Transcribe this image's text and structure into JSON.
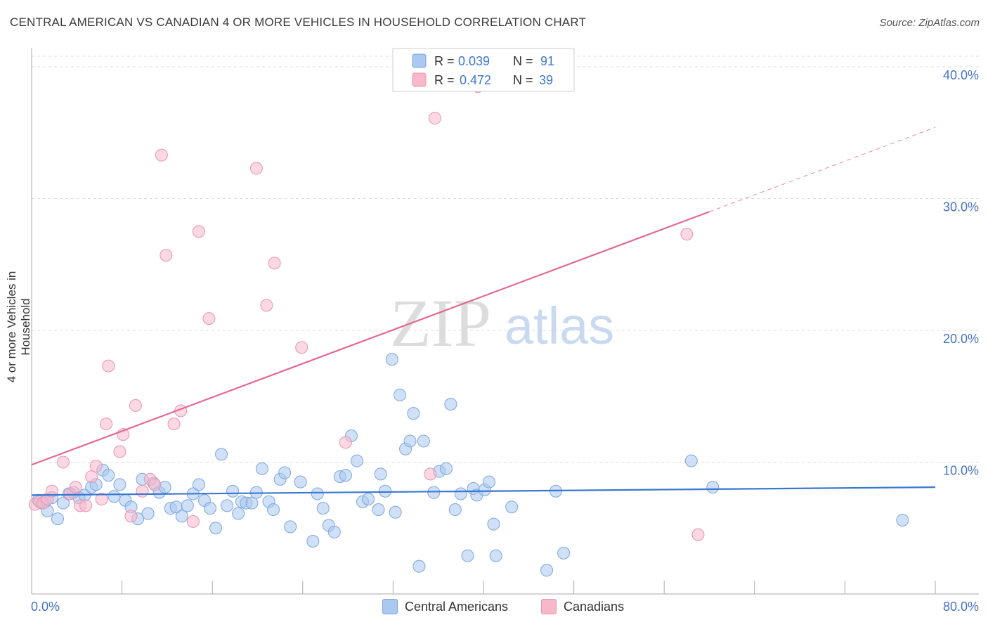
{
  "title": "CENTRAL AMERICAN VS CANADIAN 4 OR MORE VEHICLES IN HOUSEHOLD CORRELATION CHART",
  "source": "Source: ZipAtlas.com",
  "watermark": {
    "zip": "ZIP",
    "atlas": "atlas"
  },
  "legend": {
    "r_label": "R =",
    "n_label": "N =",
    "rows": [
      {
        "r": "0.039",
        "n": "91",
        "color": "#aac8f0"
      },
      {
        "r": "0.472",
        "n": "39",
        "color": "#f7b8cc"
      }
    ]
  },
  "bottom_legend": [
    {
      "label": "Central Americans",
      "color": "#aac8f0"
    },
    {
      "label": "Canadians",
      "color": "#f7b8cc"
    }
  ],
  "chart_data": {
    "type": "scatter",
    "title": "CENTRAL AMERICAN VS CANADIAN 4 OR MORE VEHICLES IN HOUSEHOLD CORRELATION CHART",
    "xlabel": "",
    "ylabel": "4 or more Vehicles in Household",
    "xlim": [
      0,
      80
    ],
    "ylim": [
      0,
      40.8
    ],
    "x_tick_labels": [
      "0.0%",
      "80.0%"
    ],
    "y_ticks": [
      10,
      20,
      30,
      40
    ],
    "y_tick_labels": [
      "10.0%",
      "20.0%",
      "30.0%",
      "40.0%"
    ],
    "grid": true,
    "series": [
      {
        "name": "Central Americans",
        "color": "#aac8f0",
        "stroke": "#7ba6de",
        "trend": {
          "x": [
            0,
            80
          ],
          "y": [
            7.5,
            8.1
          ],
          "color": "#3a78d0"
        },
        "points": [
          [
            0.6,
            7.1
          ],
          [
            0.9,
            6.9
          ],
          [
            1.2,
            7.0
          ],
          [
            1.4,
            6.3
          ],
          [
            1.8,
            7.3
          ],
          [
            2.3,
            5.7
          ],
          [
            2.8,
            6.9
          ],
          [
            3.3,
            7.6
          ],
          [
            3.7,
            7.7
          ],
          [
            4.2,
            7.3
          ],
          [
            4.7,
            7.5
          ],
          [
            5.3,
            8.1
          ],
          [
            5.7,
            8.3
          ],
          [
            6.3,
            9.4
          ],
          [
            6.8,
            9.0
          ],
          [
            7.3,
            7.4
          ],
          [
            7.8,
            8.3
          ],
          [
            8.3,
            7.1
          ],
          [
            8.8,
            6.6
          ],
          [
            9.4,
            5.7
          ],
          [
            9.8,
            8.7
          ],
          [
            10.3,
            6.1
          ],
          [
            10.8,
            8.4
          ],
          [
            11.3,
            7.7
          ],
          [
            11.8,
            8.1
          ],
          [
            12.3,
            6.5
          ],
          [
            12.8,
            6.6
          ],
          [
            13.3,
            5.9
          ],
          [
            13.8,
            6.7
          ],
          [
            14.3,
            7.6
          ],
          [
            14.8,
            8.3
          ],
          [
            15.3,
            7.1
          ],
          [
            15.8,
            6.5
          ],
          [
            16.3,
            5.0
          ],
          [
            16.8,
            10.6
          ],
          [
            17.3,
            6.7
          ],
          [
            17.8,
            7.8
          ],
          [
            18.3,
            6.1
          ],
          [
            18.6,
            7.0
          ],
          [
            19.0,
            6.9
          ],
          [
            19.5,
            6.9
          ],
          [
            19.9,
            7.7
          ],
          [
            20.4,
            9.5
          ],
          [
            21.0,
            7.0
          ],
          [
            21.4,
            6.4
          ],
          [
            22.0,
            8.7
          ],
          [
            22.4,
            9.2
          ],
          [
            22.9,
            5.1
          ],
          [
            23.8,
            8.5
          ],
          [
            24.9,
            4.0
          ],
          [
            25.3,
            7.6
          ],
          [
            25.8,
            6.5
          ],
          [
            26.3,
            5.2
          ],
          [
            26.8,
            4.7
          ],
          [
            27.3,
            8.9
          ],
          [
            27.8,
            9.0
          ],
          [
            28.3,
            12.0
          ],
          [
            28.8,
            10.1
          ],
          [
            29.3,
            7.0
          ],
          [
            29.8,
            7.2
          ],
          [
            30.7,
            6.4
          ],
          [
            30.9,
            9.1
          ],
          [
            31.3,
            7.8
          ],
          [
            31.9,
            17.8
          ],
          [
            32.2,
            6.2
          ],
          [
            32.6,
            15.1
          ],
          [
            33.1,
            11.0
          ],
          [
            33.5,
            11.6
          ],
          [
            33.8,
            13.7
          ],
          [
            34.3,
            2.1
          ],
          [
            34.7,
            11.6
          ],
          [
            35.6,
            7.7
          ],
          [
            36.1,
            9.3
          ],
          [
            36.7,
            9.5
          ],
          [
            37.1,
            14.4
          ],
          [
            37.5,
            6.4
          ],
          [
            38.0,
            7.6
          ],
          [
            38.6,
            2.9
          ],
          [
            39.1,
            8.0
          ],
          [
            39.4,
            7.5
          ],
          [
            40.1,
            7.9
          ],
          [
            40.5,
            8.5
          ],
          [
            40.9,
            5.3
          ],
          [
            41.1,
            2.9
          ],
          [
            42.5,
            6.6
          ],
          [
            45.6,
            1.8
          ],
          [
            46.4,
            7.8
          ],
          [
            47.1,
            3.1
          ],
          [
            58.4,
            10.1
          ],
          [
            60.3,
            8.1
          ],
          [
            77.1,
            5.6
          ]
        ]
      },
      {
        "name": "Canadians",
        "color": "#f7b8cc",
        "stroke": "#e993b0",
        "trend": {
          "x": [
            0,
            60
          ],
          "y": [
            9.8,
            29.0
          ],
          "dash_to": [
            80,
            35.4
          ],
          "color": "#e5688f"
        },
        "points": [
          [
            0.3,
            6.8
          ],
          [
            0.7,
            7.0
          ],
          [
            1.0,
            6.9
          ],
          [
            1.4,
            7.2
          ],
          [
            1.8,
            7.8
          ],
          [
            2.8,
            10.0
          ],
          [
            3.4,
            7.6
          ],
          [
            3.9,
            8.1
          ],
          [
            4.3,
            6.7
          ],
          [
            4.8,
            6.7
          ],
          [
            5.3,
            8.9
          ],
          [
            5.7,
            9.7
          ],
          [
            6.2,
            7.2
          ],
          [
            6.6,
            12.9
          ],
          [
            6.8,
            17.3
          ],
          [
            7.8,
            10.8
          ],
          [
            8.1,
            12.1
          ],
          [
            8.8,
            5.9
          ],
          [
            9.2,
            14.3
          ],
          [
            9.8,
            7.8
          ],
          [
            10.5,
            8.7
          ],
          [
            10.9,
            8.3
          ],
          [
            11.5,
            33.3
          ],
          [
            11.9,
            25.7
          ],
          [
            12.6,
            12.9
          ],
          [
            13.2,
            13.9
          ],
          [
            14.3,
            5.5
          ],
          [
            14.8,
            27.5
          ],
          [
            15.7,
            20.9
          ],
          [
            19.9,
            32.3
          ],
          [
            20.8,
            21.9
          ],
          [
            21.5,
            25.1
          ],
          [
            23.9,
            18.7
          ],
          [
            27.8,
            11.5
          ],
          [
            35.3,
            9.1
          ],
          [
            35.7,
            36.1
          ],
          [
            39.5,
            38.5
          ],
          [
            58.0,
            27.3
          ],
          [
            59.0,
            4.5
          ]
        ]
      }
    ]
  }
}
